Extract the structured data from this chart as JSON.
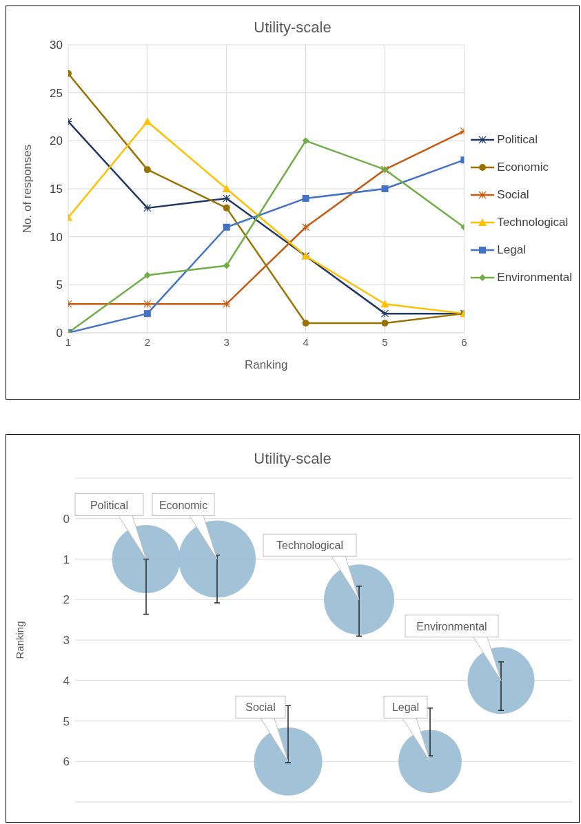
{
  "chart_data": [
    {
      "type": "line",
      "title": "Utility-scale",
      "xlabel": "Ranking",
      "ylabel": "No. of responses",
      "x": [
        1,
        2,
        3,
        4,
        5,
        6
      ],
      "xlim": [
        1,
        6
      ],
      "xticks": [
        1,
        2,
        3,
        4,
        5,
        6
      ],
      "ylim": [
        0,
        30
      ],
      "yticks": [
        0,
        5,
        10,
        15,
        20,
        25,
        30
      ],
      "grid": true,
      "legend": "right",
      "line_style": "solid",
      "series": [
        {
          "name": "Political",
          "color": "#203864",
          "marker": "cross",
          "values": [
            22,
            13,
            14,
            8,
            2,
            2
          ]
        },
        {
          "name": "Economic",
          "color": "#997300",
          "marker": "circle",
          "values": [
            27,
            17,
            13,
            1,
            1,
            2
          ]
        },
        {
          "name": "Social",
          "color": "#c55a11",
          "marker": "cross",
          "values": [
            3,
            3,
            3,
            11,
            17,
            21
          ]
        },
        {
          "name": "Technological",
          "color": "#ffc000",
          "marker": "triangle",
          "values": [
            12,
            22,
            15,
            8,
            3,
            2
          ]
        },
        {
          "name": "Legal",
          "color": "#4472c4",
          "marker": "square",
          "values": [
            0,
            2,
            11,
            14,
            15,
            18
          ]
        },
        {
          "name": "Environmental",
          "color": "#70ad47",
          "marker": "diamond",
          "values": [
            0,
            6,
            7,
            20,
            17,
            11
          ]
        }
      ]
    },
    {
      "type": "bubble",
      "title": "Utility-scale",
      "ylabel": "Ranking",
      "categories": [
        null,
        null,
        null,
        null,
        null,
        null
      ],
      "ylim": [
        7,
        -1
      ],
      "yticks": [
        {
          "value": 7,
          "label": null
        },
        6,
        5,
        4,
        3,
        2,
        1,
        0,
        {
          "value": -1,
          "label": null
        }
      ],
      "grid": "y",
      "legend": false,
      "tick_labels": "y",
      "series": [
        {
          "name": "Political",
          "color": "#9dbfd6",
          "values": [
            1,
            null,
            null,
            null,
            null,
            null
          ],
          "sizes": [
            0.78,
            null,
            null,
            null,
            null,
            null
          ],
          "errors": [
            [
              1.0,
              2.36
            ],
            null,
            null,
            null,
            null,
            null
          ]
        },
        {
          "name": "Economic",
          "color": "#9dbfd6",
          "values": [
            null,
            1,
            null,
            null,
            null,
            null
          ],
          "sizes": [
            null,
            1,
            null,
            null,
            null,
            null
          ],
          "errors": [
            null,
            [
              0.9,
              2.08
            ],
            null,
            null,
            null,
            null
          ]
        },
        {
          "name": "Social",
          "color": "#9dbfd6",
          "values": [
            null,
            null,
            6,
            null,
            null,
            null
          ],
          "sizes": [
            null,
            null,
            0.78,
            null,
            null,
            null
          ],
          "errors": [
            null,
            null,
            [
              4.62,
              6.03
            ],
            null,
            null,
            null
          ]
        },
        {
          "name": "Technological",
          "color": "#9dbfd6",
          "values": [
            null,
            null,
            null,
            2,
            null,
            null
          ],
          "sizes": [
            null,
            null,
            null,
            0.83,
            null,
            null
          ],
          "errors": [
            null,
            null,
            null,
            [
              1.67,
              2.9
            ],
            null,
            null
          ]
        },
        {
          "name": "Legal",
          "color": "#9dbfd6",
          "values": [
            null,
            null,
            null,
            null,
            6,
            null
          ],
          "sizes": [
            null,
            null,
            null,
            null,
            0.67,
            null
          ],
          "errors": [
            null,
            null,
            null,
            null,
            [
              4.68,
              5.86
            ],
            null
          ]
        },
        {
          "name": "Environmental",
          "color": "#9dbfd6",
          "values": [
            null,
            null,
            null,
            null,
            null,
            4
          ],
          "sizes": [
            null,
            null,
            null,
            null,
            null,
            0.75
          ],
          "errors": [
            null,
            null,
            null,
            null,
            null,
            [
              3.54,
              4.74
            ]
          ]
        }
      ]
    }
  ]
}
